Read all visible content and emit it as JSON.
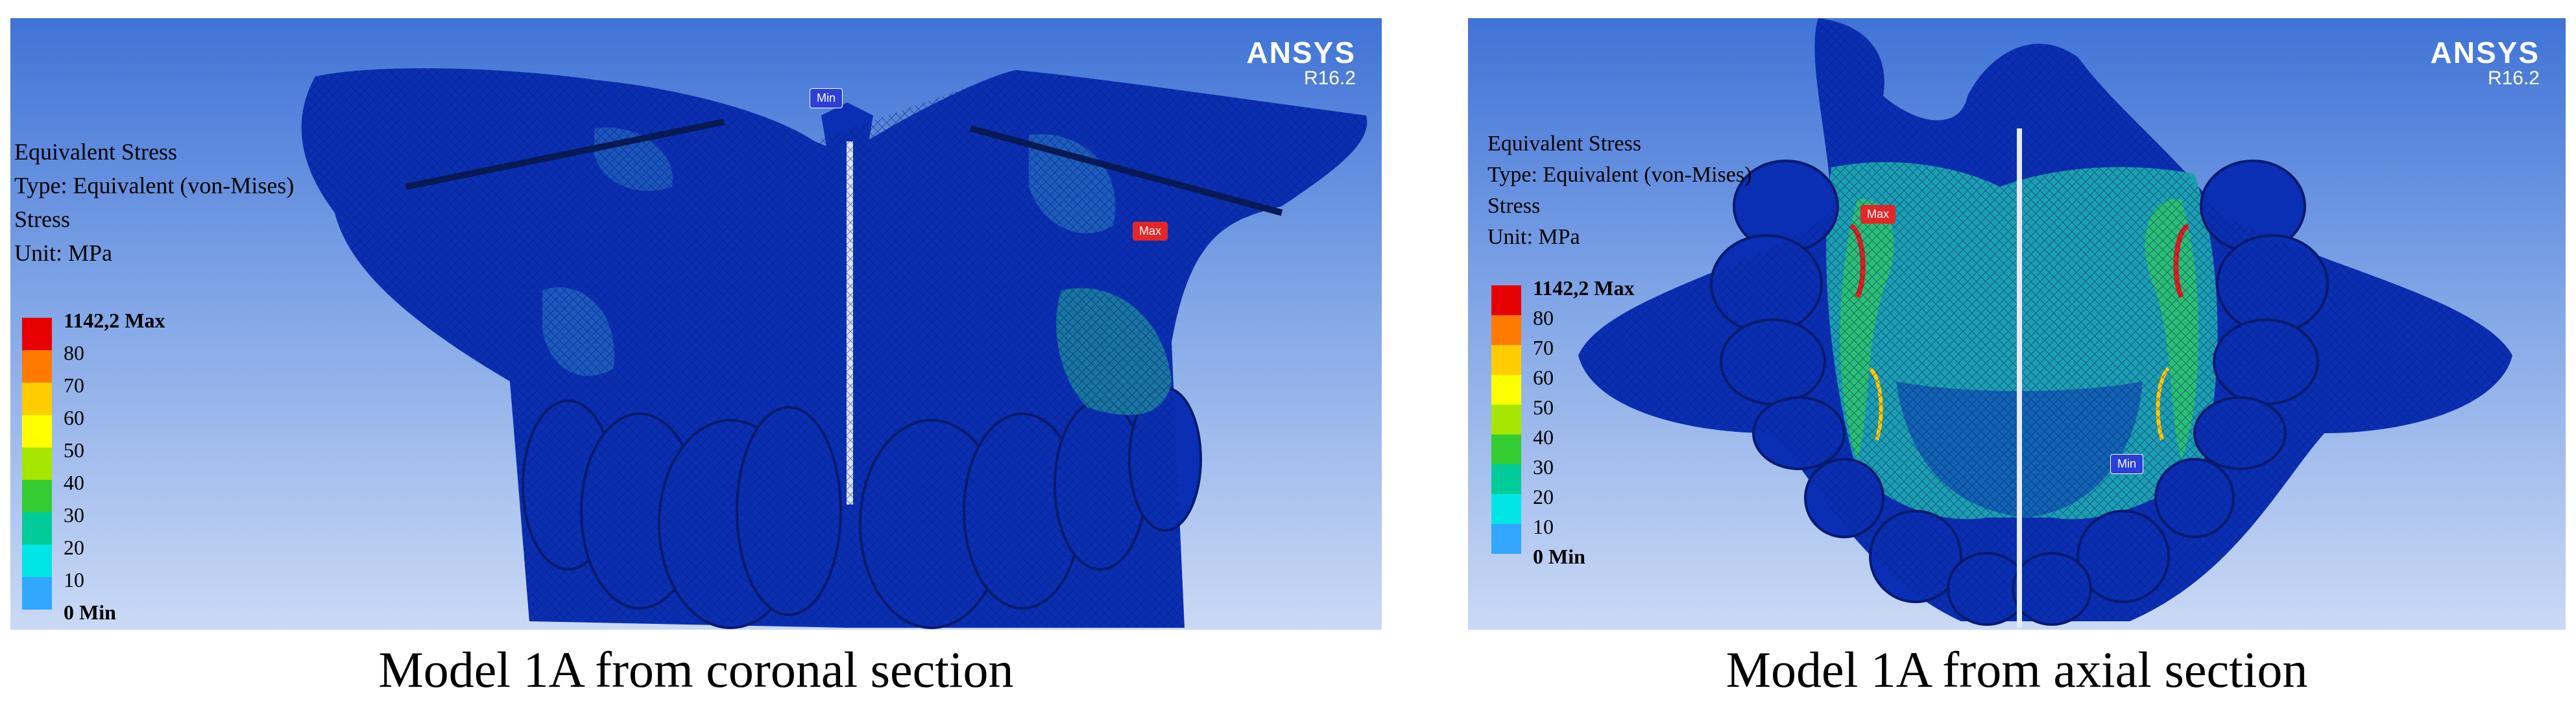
{
  "figures": [
    {
      "ansys_brand": "ANSYS",
      "ansys_version": "R16.2",
      "info": {
        "title": "Equivalent Stress",
        "type": "Type: Equivalent (von-Mises)",
        "quantity": "Stress",
        "unit": "Unit: MPa"
      },
      "legend": [
        "1142,2 Max",
        "80",
        "70",
        "60",
        "50",
        "40",
        "30",
        "20",
        "10",
        "0 Min"
      ],
      "min_marker": "Min",
      "max_marker": "Max",
      "caption": "Model 1A from coronal section"
    },
    {
      "ansys_brand": "ANSYS",
      "ansys_version": "R16.2",
      "info": {
        "title": "Equivalent Stress",
        "type": "Type: Equivalent (von-Mises)",
        "quantity": "Stress",
        "unit": "Unit: MPa"
      },
      "legend": [
        "1142,2 Max",
        "80",
        "70",
        "60",
        "50",
        "40",
        "30",
        "20",
        "10",
        "0 Min"
      ],
      "min_marker": "Min",
      "max_marker": "Max",
      "caption": "Model 1A from axial section"
    }
  ],
  "legend_colors": [
    "#e60000",
    "#ff7a00",
    "#ffcc00",
    "#ffff00",
    "#a6e600",
    "#33cc33",
    "#00cc99",
    "#00e6e6",
    "#33a6ff",
    "#0000e6"
  ]
}
